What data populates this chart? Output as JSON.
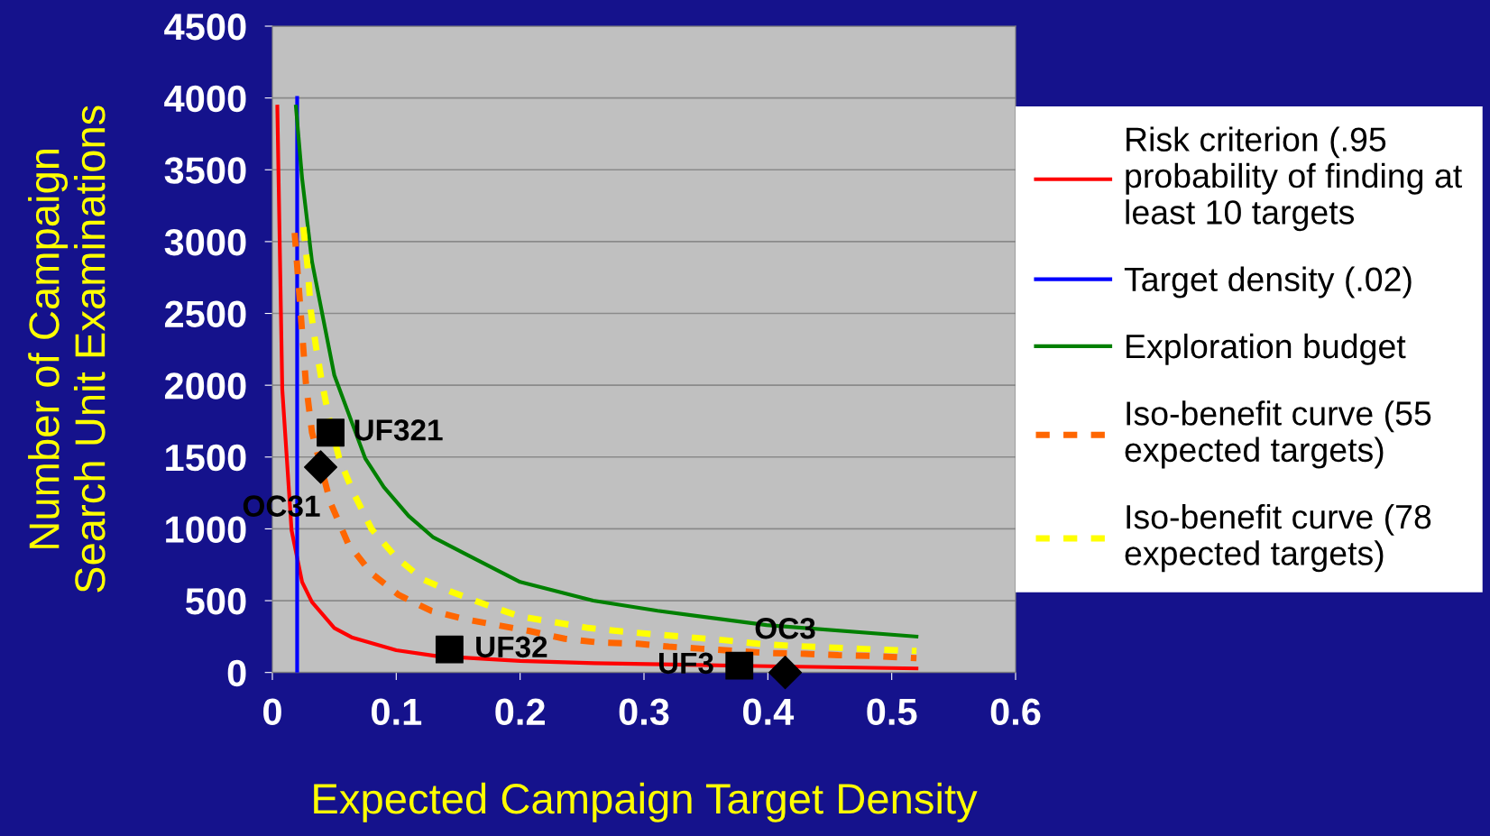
{
  "chart_data": {
    "type": "line",
    "xlabel": "Expected Campaign Target Density",
    "ylabel": "Number of Campaign\nSearch Unit Examinations",
    "xlim": [
      0,
      0.6
    ],
    "xticks": [
      0,
      0.1,
      0.2,
      0.3,
      0.4,
      0.5,
      0.6
    ],
    "ylim": [
      0,
      4500
    ],
    "yticks": [
      0,
      500,
      1000,
      1500,
      2000,
      2500,
      3000,
      3500,
      4000,
      4500
    ],
    "grid": "y",
    "legend": "right",
    "series": [
      {
        "name": "Risk criterion (.95\nprobability of finding at\nleast 10 targets",
        "color": "#ff0000",
        "line_style": "solid",
        "x": [
          0.004,
          0.008,
          0.0155,
          0.024,
          0.032,
          0.05,
          0.064,
          0.1,
          0.132,
          0.2,
          0.26,
          0.39,
          0.52
        ],
        "values": [
          3940,
          1970,
          990,
          630,
          490,
          310,
          245,
          155,
          115,
          80,
          65,
          45,
          28
        ]
      },
      {
        "name": "Target density (.02)",
        "color": "#0000ff",
        "line_style": "solid",
        "x": [
          0.02,
          0.02
        ],
        "values": [
          0,
          4000
        ]
      },
      {
        "name": "Exploration budget",
        "color": "#008000",
        "line_style": "solid",
        "x": [
          0.019,
          0.024,
          0.032,
          0.05,
          0.075,
          0.09,
          0.11,
          0.13,
          0.2,
          0.259,
          0.311,
          0.399,
          0.52
        ],
        "values": [
          3940,
          3440,
          2860,
          2070,
          1490,
          1290,
          1090,
          940,
          630,
          500,
          430,
          330,
          250
        ]
      },
      {
        "name": "Iso-benefit curve (55\nexpected targets)",
        "color": "#ff6600",
        "line_style": "dashed",
        "x": [
          0.018,
          0.023,
          0.027,
          0.032,
          0.047,
          0.061,
          0.08,
          0.102,
          0.128,
          0.156,
          0.181,
          0.207,
          0.236,
          0.262,
          0.295,
          0.32,
          0.347,
          0.374,
          0.402,
          0.43,
          0.457,
          0.485,
          0.52
        ],
        "values": [
          3060,
          2490,
          2020,
          1670,
          1180,
          900,
          690,
          540,
          430,
          370,
          330,
          290,
          235,
          210,
          200,
          180,
          165,
          150,
          135,
          130,
          120,
          115,
          100
        ]
      },
      {
        "name": "Iso-benefit curve (78\nexpected targets)",
        "color": "#ffff00",
        "line_style": "dashed",
        "x": [
          0.025,
          0.0285,
          0.031,
          0.035,
          0.04,
          0.046,
          0.054,
          0.065,
          0.08,
          0.099,
          0.121,
          0.145,
          0.173,
          0.2,
          0.228,
          0.255,
          0.283,
          0.31,
          0.337,
          0.365,
          0.392,
          0.42,
          0.448,
          0.475,
          0.503,
          0.52
        ],
        "values": [
          3100,
          2820,
          2520,
          2280,
          2020,
          1760,
          1490,
          1260,
          1000,
          810,
          650,
          560,
          470,
          390,
          350,
          310,
          285,
          265,
          245,
          225,
          200,
          185,
          175,
          165,
          155,
          150
        ]
      },
      {
        "type": "scatter",
        "marker": "square",
        "color": "#000000",
        "x": [
          0.047,
          0.143,
          0.377
        ],
        "values": [
          1670,
          160,
          47
        ]
      },
      {
        "type": "scatter",
        "marker": "diamond",
        "color": "#000000",
        "x": [
          0.039,
          0.414
        ],
        "values": [
          1430,
          0
        ]
      }
    ],
    "annotations": [
      {
        "text": "UF321",
        "x": 0.047,
        "y": 1670
      },
      {
        "text": "OC31",
        "x": 0.039,
        "y": 1430
      },
      {
        "text": "UF32",
        "x": 0.143,
        "y": 160
      },
      {
        "text": "UF3",
        "x": 0.377,
        "y": 47
      },
      {
        "text": "OC3",
        "x": 0.414,
        "y": 0
      }
    ]
  }
}
